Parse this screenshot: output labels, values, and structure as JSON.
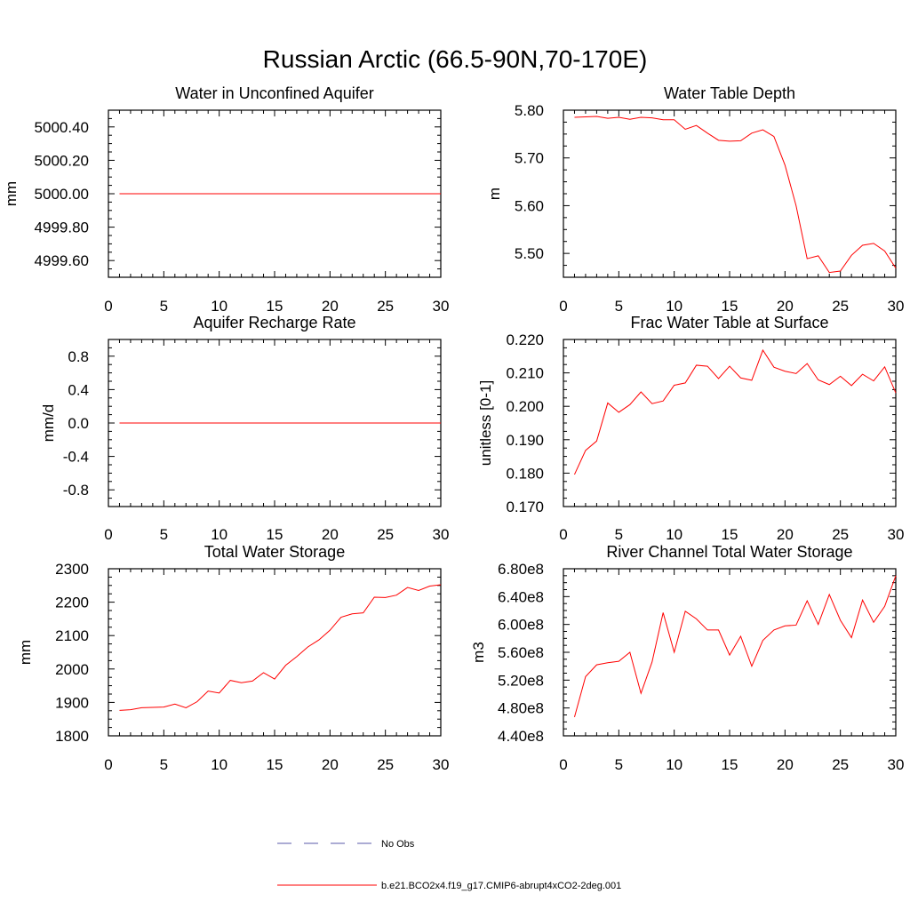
{
  "figure_title": "Russian Arctic (66.5-90N,70-170E)",
  "legend": [
    {
      "label": "No Obs",
      "color": "#5a5aa8",
      "dash": "dashed"
    },
    {
      "label": "b.e21.BCO2x4.f19_g17.CMIP6-abrupt4xCO2-2deg.001",
      "color": "#ff0000",
      "dash": "solid"
    }
  ],
  "chart_data": [
    {
      "id": "aquifer",
      "type": "line",
      "title": "Water in Unconfined Aquifer",
      "ylabel": "mm",
      "xlim": [
        0,
        30
      ],
      "ylim": [
        4999.5,
        5000.5
      ],
      "xticks": [
        0,
        5,
        10,
        15,
        20,
        25,
        30
      ],
      "yticks": [
        4999.6,
        4999.8,
        5000.0,
        5000.2,
        5000.4
      ],
      "ytick_labels": [
        "4999.60",
        "4999.80",
        "5000.00",
        "5000.20",
        "5000.40"
      ],
      "series": [
        {
          "name": "b.e21.BCO2x4.f19_g17.CMIP6-abrupt4xCO2-2deg.001",
          "color": "#ff0000",
          "x": [
            1,
            30
          ],
          "values": [
            5000.0,
            5000.0
          ]
        }
      ]
    },
    {
      "id": "wtd",
      "type": "line",
      "title": "Water Table Depth",
      "ylabel": "m",
      "xlim": [
        0,
        30
      ],
      "ylim": [
        5.45,
        5.8
      ],
      "xticks": [
        0,
        5,
        10,
        15,
        20,
        25,
        30
      ],
      "yticks": [
        5.5,
        5.6,
        5.7,
        5.8
      ],
      "ytick_labels": [
        "5.50",
        "5.60",
        "5.70",
        "5.80"
      ],
      "series": [
        {
          "name": "b.e21.BCO2x4.f19_g17.CMIP6-abrupt4xCO2-2deg.001",
          "color": "#ff0000",
          "x": [
            1,
            2,
            3,
            4,
            5,
            6,
            7,
            8,
            9,
            10,
            11,
            12,
            13,
            14,
            15,
            16,
            17,
            18,
            19,
            20,
            21,
            22,
            23,
            24,
            25,
            26,
            27,
            28,
            29,
            30
          ],
          "values": [
            5.785,
            5.786,
            5.787,
            5.783,
            5.785,
            5.781,
            5.785,
            5.784,
            5.78,
            5.78,
            5.76,
            5.768,
            5.752,
            5.737,
            5.735,
            5.736,
            5.752,
            5.759,
            5.745,
            5.685,
            5.6,
            5.489,
            5.495,
            5.46,
            5.463,
            5.496,
            5.517,
            5.521,
            5.505,
            5.469
          ]
        }
      ]
    },
    {
      "id": "recharge",
      "type": "line",
      "title": "Aquifer Recharge Rate",
      "ylabel": "mm/d",
      "xlim": [
        0,
        30
      ],
      "ylim": [
        -1,
        1
      ],
      "xticks": [
        0,
        5,
        10,
        15,
        20,
        25,
        30
      ],
      "yticks": [
        -0.8,
        -0.4,
        0.0,
        0.4,
        0.8
      ],
      "ytick_labels": [
        "-0.8",
        "-0.4",
        "0.0",
        "0.4",
        "0.8"
      ],
      "series": [
        {
          "name": "b.e21.BCO2x4.f19_g17.CMIP6-abrupt4xCO2-2deg.001",
          "color": "#ff0000",
          "x": [
            1,
            30
          ],
          "values": [
            0.0,
            0.0
          ]
        }
      ]
    },
    {
      "id": "frac",
      "type": "line",
      "title": "Frac Water Table at Surface",
      "ylabel": "unitless [0-1]",
      "xlim": [
        0,
        30
      ],
      "ylim": [
        0.17,
        0.22
      ],
      "xticks": [
        0,
        5,
        10,
        15,
        20,
        25,
        30
      ],
      "yticks": [
        0.17,
        0.18,
        0.19,
        0.2,
        0.21,
        0.22
      ],
      "ytick_labels": [
        "0.170",
        "0.180",
        "0.190",
        "0.200",
        "0.210",
        "0.220"
      ],
      "series": [
        {
          "name": "b.e21.BCO2x4.f19_g17.CMIP6-abrupt4xCO2-2deg.001",
          "color": "#ff0000",
          "x": [
            1,
            2,
            3,
            4,
            5,
            6,
            7,
            8,
            9,
            10,
            11,
            12,
            13,
            14,
            15,
            16,
            17,
            18,
            19,
            20,
            21,
            22,
            23,
            24,
            25,
            26,
            27,
            28,
            29,
            30
          ],
          "values": [
            0.1796,
            0.1868,
            0.1896,
            0.201,
            0.1982,
            0.2005,
            0.2043,
            0.2008,
            0.2016,
            0.2063,
            0.207,
            0.2123,
            0.212,
            0.2083,
            0.212,
            0.2085,
            0.2078,
            0.2168,
            0.2117,
            0.2105,
            0.2098,
            0.2128,
            0.2079,
            0.2065,
            0.209,
            0.2062,
            0.2096,
            0.2076,
            0.2118,
            0.204
          ]
        }
      ]
    },
    {
      "id": "tws",
      "type": "line",
      "title": "Total Water Storage",
      "ylabel": "mm",
      "xlim": [
        0,
        30
      ],
      "ylim": [
        1800,
        2300
      ],
      "xticks": [
        0,
        5,
        10,
        15,
        20,
        25,
        30
      ],
      "yticks": [
        1800,
        1900,
        2000,
        2100,
        2200,
        2300
      ],
      "ytick_labels": [
        "1800",
        "1900",
        "2000",
        "2100",
        "2200",
        "2300"
      ],
      "series": [
        {
          "name": "b.e21.BCO2x4.f19_g17.CMIP6-abrupt4xCO2-2deg.001",
          "color": "#ff0000",
          "x": [
            1,
            2,
            3,
            4,
            5,
            6,
            7,
            8,
            9,
            10,
            11,
            12,
            13,
            14,
            15,
            16,
            17,
            18,
            19,
            20,
            21,
            22,
            23,
            24,
            25,
            26,
            27,
            28,
            29,
            30
          ],
          "values": [
            1876,
            1878,
            1884,
            1885,
            1886,
            1895,
            1884,
            1902,
            1934,
            1928,
            1966,
            1959,
            1964,
            1989,
            1970,
            2011,
            2037,
            2066,
            2087,
            2116,
            2155,
            2165,
            2168,
            2215,
            2214,
            2221,
            2244,
            2235,
            2248,
            2252
          ]
        }
      ]
    },
    {
      "id": "river",
      "type": "line",
      "title": "River Channel Total Water Storage",
      "ylabel": "m3",
      "xlim": [
        0,
        30
      ],
      "ylim": [
        440000000,
        680000000
      ],
      "xticks": [
        0,
        5,
        10,
        15,
        20,
        25,
        30
      ],
      "yticks": [
        440000000,
        480000000,
        520000000,
        560000000,
        600000000,
        640000000,
        680000000
      ],
      "ytick_labels": [
        "4.40e8",
        "4.80e8",
        "5.20e8",
        "5.60e8",
        "6.00e8",
        "6.40e8",
        "6.80e8"
      ],
      "series": [
        {
          "name": "b.e21.BCO2x4.f19_g17.CMIP6-abrupt4xCO2-2deg.001",
          "color": "#ff0000",
          "x": [
            1,
            2,
            3,
            4,
            5,
            6,
            7,
            8,
            9,
            10,
            11,
            12,
            13,
            14,
            15,
            16,
            17,
            18,
            19,
            20,
            21,
            22,
            23,
            24,
            25,
            26,
            27,
            28,
            29,
            30
          ],
          "values": [
            467000000,
            525000000,
            542000000,
            545000000,
            547000000,
            560000000,
            501000000,
            546000000,
            617000000,
            560000000,
            619000000,
            608000000,
            592000000,
            592000000,
            556000000,
            583000000,
            540000000,
            577000000,
            592000000,
            598000000,
            599000000,
            634000000,
            600000000,
            643000000,
            606000000,
            581000000,
            635000000,
            603000000,
            626000000,
            670000000
          ]
        }
      ]
    }
  ]
}
